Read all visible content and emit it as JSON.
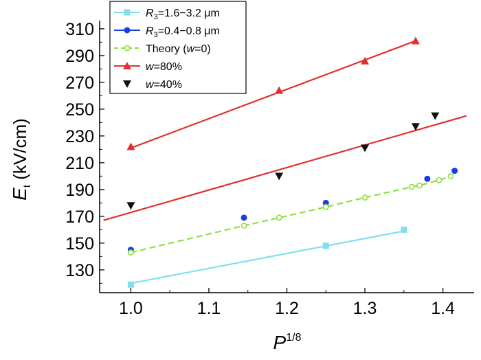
{
  "chart_data": {
    "type": "scatter",
    "xlabel": {
      "base": "P",
      "sup": "1/8"
    },
    "ylabel": {
      "base": "E",
      "sub": "t",
      "unit": " (kV/cm)"
    },
    "xlim": [
      0.96,
      1.44
    ],
    "ylim": [
      113,
      312
    ],
    "xticks": [
      1.0,
      1.1,
      1.2,
      1.3,
      1.4
    ],
    "xtick_labels": [
      "1.0",
      "1.1",
      "1.2",
      "1.3",
      "1.4"
    ],
    "yticks": [
      130,
      150,
      170,
      190,
      210,
      230,
      250,
      270,
      290,
      310
    ],
    "ytick_labels": [
      "130",
      "150",
      "170",
      "190",
      "210",
      "230",
      "250",
      "270",
      "290",
      "310"
    ],
    "legend_position": "top-left",
    "series": [
      {
        "key": "r3_large",
        "legend": [
          {
            "t": "R",
            "i": true
          },
          {
            "t": "3",
            "sub": true
          },
          {
            "t": "=1.6−3.2 μm"
          }
        ],
        "marker": "square",
        "color": "#7fdfef",
        "points": [
          [
            1.0,
            119
          ],
          [
            1.25,
            148
          ],
          [
            1.35,
            160
          ]
        ],
        "fit": [
          [
            1.0,
            120
          ],
          [
            1.35,
            159
          ]
        ]
      },
      {
        "key": "r3_small",
        "legend": [
          {
            "t": "R",
            "i": true
          },
          {
            "t": "3",
            "sub": true
          },
          {
            "t": "=0.4−0.8 μm"
          }
        ],
        "marker": "circle",
        "color": "#1a3fe0",
        "points": [
          [
            1.0,
            145
          ],
          [
            1.145,
            169
          ],
          [
            1.25,
            180
          ],
          [
            1.38,
            198
          ],
          [
            1.415,
            204
          ]
        ]
      },
      {
        "key": "theory",
        "legend": [
          {
            "t": "Theory ("
          },
          {
            "t": "w",
            "i": true
          },
          {
            "t": "=0)"
          }
        ],
        "marker": "open-circle",
        "color": "#8ee03a",
        "dashed": true,
        "points": [
          [
            1.0,
            143
          ],
          [
            1.145,
            163
          ],
          [
            1.19,
            169
          ],
          [
            1.25,
            177
          ],
          [
            1.3,
            184
          ],
          [
            1.36,
            192
          ],
          [
            1.37,
            193
          ],
          [
            1.395,
            197
          ],
          [
            1.41,
            200
          ]
        ]
      },
      {
        "key": "w80",
        "legend": [
          {
            "t": "w",
            "i": true
          },
          {
            "t": "=80%"
          }
        ],
        "marker": "triangle-up",
        "color": "#e03030",
        "points": [
          [
            1.0,
            222
          ],
          [
            1.19,
            264
          ],
          [
            1.3,
            286
          ],
          [
            1.365,
            301
          ]
        ],
        "fit": [
          [
            1.0,
            221
          ],
          [
            1.365,
            301
          ]
        ]
      },
      {
        "key": "w40",
        "legend": [
          {
            "t": "w",
            "i": true
          },
          {
            "t": "=40%"
          }
        ],
        "marker": "triangle-down",
        "color": "#111111",
        "fit_color": "#e03030",
        "points": [
          [
            1.0,
            178
          ],
          [
            1.19,
            200
          ],
          [
            1.3,
            221
          ],
          [
            1.365,
            237
          ],
          [
            1.39,
            245
          ]
        ],
        "fit": [
          [
            0.965,
            167
          ],
          [
            1.43,
            245
          ]
        ]
      }
    ]
  }
}
